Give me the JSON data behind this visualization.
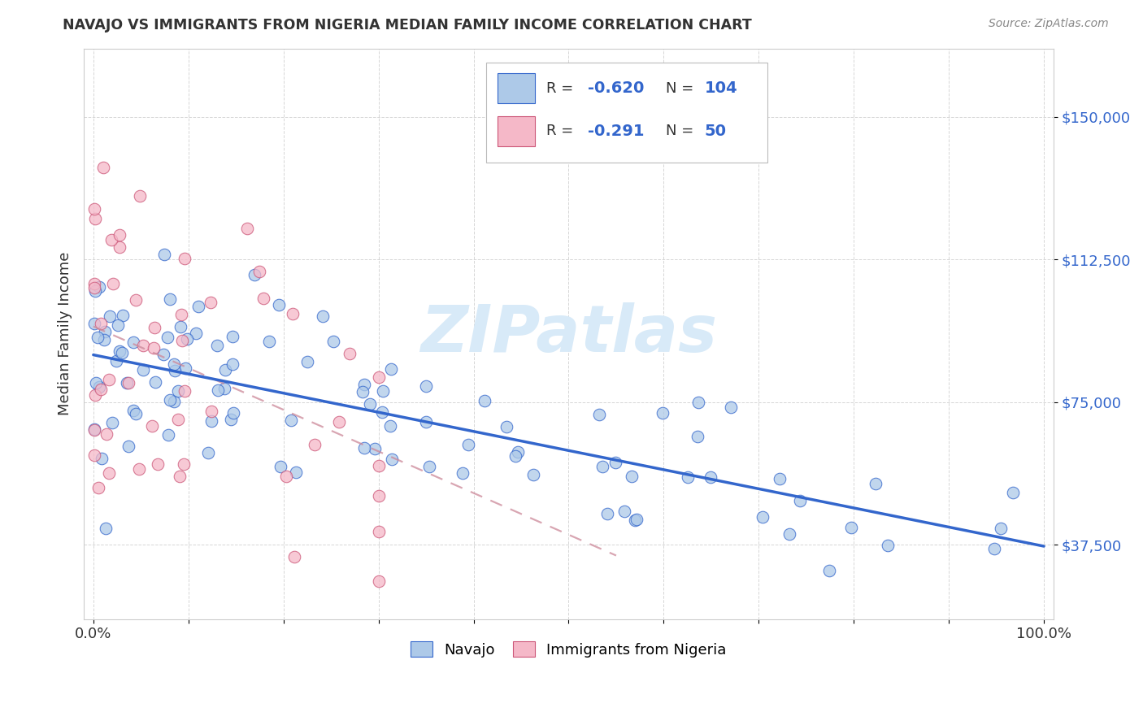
{
  "title": "NAVAJO VS IMMIGRANTS FROM NIGERIA MEDIAN FAMILY INCOME CORRELATION CHART",
  "source": "Source: ZipAtlas.com",
  "ylabel": "Median Family Income",
  "yticks": [
    37500,
    75000,
    112500,
    150000
  ],
  "ytick_labels": [
    "$37,500",
    "$75,000",
    "$112,500",
    "$150,000"
  ],
  "navajo_R": "-0.620",
  "navajo_N": "104",
  "nigeria_R": "-0.291",
  "nigeria_N": "50",
  "legend_label_1": "Navajo",
  "legend_label_2": "Immigrants from Nigeria",
  "navajo_color": "#adc9e8",
  "nigeria_color": "#f5b8c8",
  "navajo_line_color": "#3366cc",
  "nigeria_line_color": "#cc8899",
  "watermark_color": "#d8eaf8",
  "background_color": "#ffffff",
  "grid_color": "#cccccc",
  "ytick_color": "#3366cc",
  "title_color": "#333333",
  "source_color": "#888888"
}
